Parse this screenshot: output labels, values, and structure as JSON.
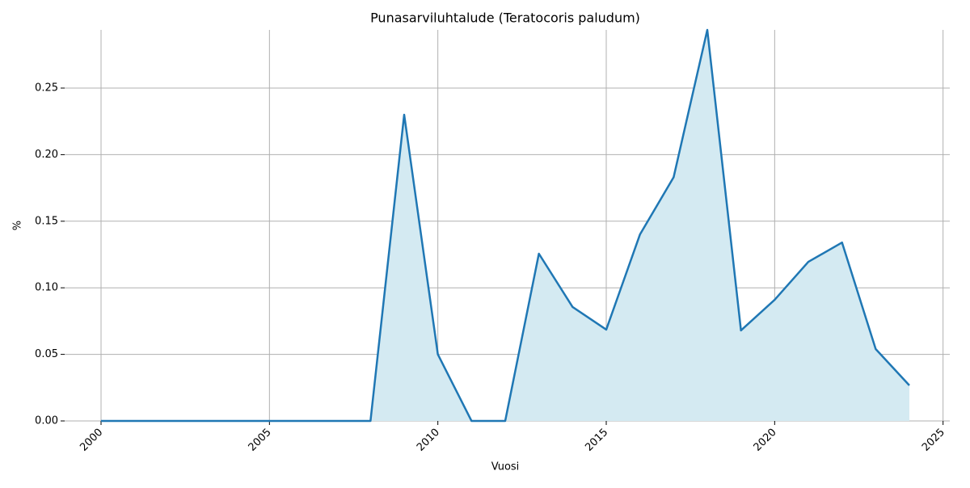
{
  "chart_data": {
    "type": "area",
    "title": "Punasarviluhtalude (Teratocoris paludum)",
    "x_label": "Vuosi",
    "y_label": "%",
    "x": [
      2000,
      2001,
      2002,
      2003,
      2004,
      2005,
      2006,
      2007,
      2008,
      2009,
      2010,
      2011,
      2012,
      2013,
      2014,
      2015,
      2016,
      2017,
      2018,
      2019,
      2020,
      2021,
      2022,
      2023,
      2024
    ],
    "series": [
      {
        "name": "Punasarviluhtalude",
        "color": "#1f77b4",
        "fill": "#d4eaf2",
        "values": [
          0,
          0,
          0,
          0,
          0,
          0,
          0,
          0,
          0,
          0.23,
          0.05,
          0,
          0,
          0.1256,
          0.0856,
          0.0686,
          0.14,
          0.183,
          0.2937,
          0.068,
          0.091,
          0.1195,
          0.134,
          0.054,
          0.0267
        ]
      }
    ],
    "xlim": [
      1998.92,
      2025.2
    ],
    "xticks": [
      2000,
      2005,
      2010,
      2015,
      2020,
      2025
    ],
    "ylim": [
      0,
      0.2937
    ],
    "yticks": [
      {
        "value": 0,
        "label": "0.00"
      },
      {
        "value": 0.05,
        "label": "0.05"
      },
      {
        "value": 0.1,
        "label": "0.10"
      },
      {
        "value": 0.15,
        "label": "0.15"
      },
      {
        "value": 0.2,
        "label": "0.20"
      },
      {
        "value": 0.25,
        "label": "0.25"
      }
    ],
    "grid": true
  }
}
